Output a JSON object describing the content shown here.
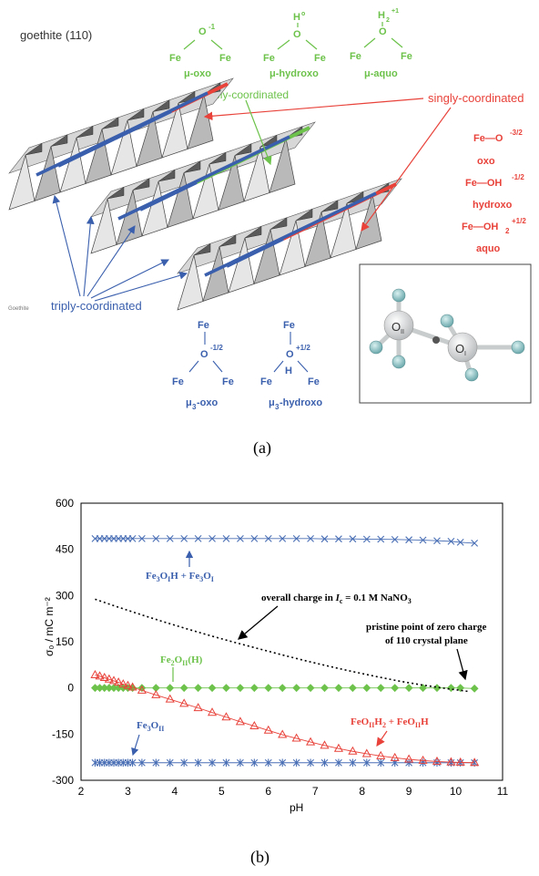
{
  "panel_a": {
    "title": "goethite (110)",
    "small_label": "Goethite",
    "panel_label": "(a)",
    "green_groups": [
      {
        "sup_label": "O",
        "sup": "-1",
        "left": "Fe",
        "right": "Fe",
        "name": "μ-oxo"
      },
      {
        "sup_label": "H",
        "sup": "o",
        "o": "O",
        "left": "Fe",
        "right": "Fe",
        "name": "μ-hydroxo"
      },
      {
        "sup_label": "H",
        "sub": "2",
        "sup": "+1",
        "o": "O",
        "left": "Fe",
        "right": "Fe",
        "name": "μ-aquo"
      }
    ],
    "doubly_label": "doubly-coordinated",
    "singly_label": "singly-coordinated",
    "triply_label": "triply-coordinated",
    "red_groups": [
      {
        "formula": "Fe—O",
        "sup": "-3/2",
        "name": "oxo"
      },
      {
        "formula": "Fe—OH",
        "sup": "-1/2",
        "name": "hydroxo"
      },
      {
        "formula": "Fe—OH",
        "sub": "2",
        "sup": "+1/2",
        "name": "aquo"
      }
    ],
    "blue_groups": [
      {
        "top": "Fe",
        "o": "O",
        "sup": "-1/2",
        "left": "Fe",
        "right": "Fe",
        "name": "μ",
        "name_sub": "3",
        "name_rest": "-oxo"
      },
      {
        "top": "Fe",
        "o": "O",
        "sup": "+1/2",
        "h": "H",
        "left": "Fe",
        "right": "Fe",
        "name": "μ",
        "name_sub": "3",
        "name_rest": "-hydroxo"
      }
    ],
    "inset_labels": {
      "o2": "O",
      "o2_sub": "II",
      "o1": "O",
      "o1_sub": "I"
    }
  },
  "chart_data": {
    "type": "scatter",
    "panel_label": "(b)",
    "xlabel": "pH",
    "ylabel": "σ₀ / mC m⁻²",
    "xlim": [
      2,
      11
    ],
    "ylim": [
      -300,
      600
    ],
    "xticks": [
      2,
      3,
      4,
      5,
      6,
      7,
      8,
      9,
      10,
      11
    ],
    "yticks": [
      -300,
      -150,
      0,
      150,
      300,
      450,
      600
    ],
    "grid": true,
    "series": [
      {
        "name": "Fe3OIH + Fe3OI",
        "marker": "x",
        "color": "#4a6fb5",
        "x": [
          2.3,
          2.4,
          2.5,
          2.6,
          2.7,
          2.8,
          2.9,
          3.0,
          3.1,
          3.3,
          3.6,
          3.9,
          4.2,
          4.5,
          4.8,
          5.1,
          5.4,
          5.7,
          6.0,
          6.3,
          6.6,
          6.9,
          7.2,
          7.5,
          7.8,
          8.1,
          8.4,
          8.7,
          9.0,
          9.3,
          9.6,
          9.9,
          10.1,
          10.4
        ],
        "y": [
          485,
          485,
          485,
          485,
          485,
          485,
          485,
          485,
          485,
          485,
          485,
          485,
          485,
          485,
          485,
          485,
          485,
          485,
          485,
          485,
          485,
          485,
          484,
          484,
          484,
          483,
          483,
          482,
          481,
          480,
          478,
          476,
          473,
          470
        ]
      },
      {
        "name": "Fe3OII",
        "marker": "asterisk",
        "color": "#4a6fb5",
        "x": [
          2.3,
          2.4,
          2.5,
          2.6,
          2.7,
          2.8,
          2.9,
          3.0,
          3.1,
          3.3,
          3.6,
          3.9,
          4.2,
          4.5,
          4.8,
          5.1,
          5.4,
          5.7,
          6.0,
          6.3,
          6.6,
          6.9,
          7.2,
          7.5,
          7.8,
          8.1,
          8.4,
          8.7,
          9.0,
          9.3,
          9.6,
          9.9,
          10.1,
          10.4
        ],
        "y": [
          -243,
          -243,
          -243,
          -243,
          -243,
          -243,
          -243,
          -243,
          -243,
          -243,
          -243,
          -243,
          -243,
          -243,
          -243,
          -243,
          -243,
          -243,
          -243,
          -243,
          -243,
          -243,
          -243,
          -243,
          -243,
          -243,
          -243,
          -243,
          -243,
          -243,
          -243,
          -243,
          -243,
          -243
        ]
      },
      {
        "name": "Fe2OII(H)",
        "marker": "diamond",
        "color": "#6cc24a",
        "x": [
          2.3,
          2.4,
          2.5,
          2.6,
          2.7,
          2.8,
          2.9,
          3.0,
          3.1,
          3.3,
          3.6,
          3.9,
          4.2,
          4.5,
          4.8,
          5.1,
          5.4,
          5.7,
          6.0,
          6.3,
          6.6,
          6.9,
          7.2,
          7.5,
          7.8,
          8.1,
          8.4,
          8.7,
          9.0,
          9.3,
          9.6,
          9.9,
          10.1,
          10.4
        ],
        "y": [
          0,
          0,
          0,
          0,
          0,
          0,
          0,
          0,
          0,
          0,
          0,
          0,
          0,
          0,
          0,
          0,
          0,
          0,
          0,
          0,
          0,
          0,
          0,
          0,
          0,
          0,
          0,
          0,
          0,
          0,
          0,
          0,
          0,
          -2
        ]
      },
      {
        "name": "FeOIIH2 + FeOIIH",
        "marker": "triangle",
        "color": "#e8423a",
        "x": [
          2.3,
          2.4,
          2.5,
          2.6,
          2.7,
          2.8,
          2.9,
          3.0,
          3.1,
          3.3,
          3.6,
          3.9,
          4.2,
          4.5,
          4.8,
          5.1,
          5.4,
          5.7,
          6.0,
          6.3,
          6.6,
          6.9,
          7.2,
          7.5,
          7.8,
          8.1,
          8.4,
          8.7,
          9.0,
          9.3,
          9.6,
          9.9,
          10.1,
          10.4
        ],
        "y": [
          42,
          38,
          33,
          28,
          23,
          18,
          12,
          7,
          2,
          -8,
          -23,
          -37,
          -51,
          -65,
          -80,
          -95,
          -110,
          -124,
          -138,
          -152,
          -164,
          -176,
          -187,
          -197,
          -206,
          -214,
          -221,
          -227,
          -232,
          -236,
          -239,
          -241,
          -242,
          -243
        ]
      },
      {
        "name": "overall charge",
        "marker": "dotted-line",
        "color": "#000000",
        "x": [
          2.3,
          2.8,
          3.3,
          3.8,
          4.3,
          4.8,
          5.3,
          5.8,
          6.3,
          6.8,
          7.3,
          7.8,
          8.3,
          8.8,
          9.3,
          9.8,
          10.3
        ],
        "y": [
          288,
          262,
          237,
          213,
          190,
          168,
          147,
          127,
          107,
          88,
          70,
          53,
          37,
          22,
          9,
          -2,
          -12
        ]
      }
    ],
    "annotations": {
      "fe3oih": {
        "main": "Fe",
        "sub1": "3",
        "mid1": "O",
        "sub2": "I",
        "mid2": "H + Fe",
        "sub3": "3",
        "mid3": "O",
        "sub4": "I"
      },
      "overall": {
        "main": "overall charge in ",
        "ic": "I",
        "ic_sub": "c",
        "rest": " = 0.1 M NaNO",
        "rest_sub": "3"
      },
      "pzc_line1": "pristine point of zero charge",
      "pzc_line2": "of 110 crystal plane",
      "fe2oii": {
        "main": "Fe",
        "sub1": "2",
        "mid": "O",
        "sub2": "II",
        "rest": "(H)"
      },
      "feoii": {
        "main": "FeO",
        "sub1": "II",
        "mid": "H",
        "sub2": "2",
        "mid2": " + FeO",
        "sub3": "II",
        "rest": "H"
      },
      "fe3oii": {
        "main": "Fe",
        "sub1": "3",
        "mid": "O",
        "sub2": "II"
      }
    }
  }
}
